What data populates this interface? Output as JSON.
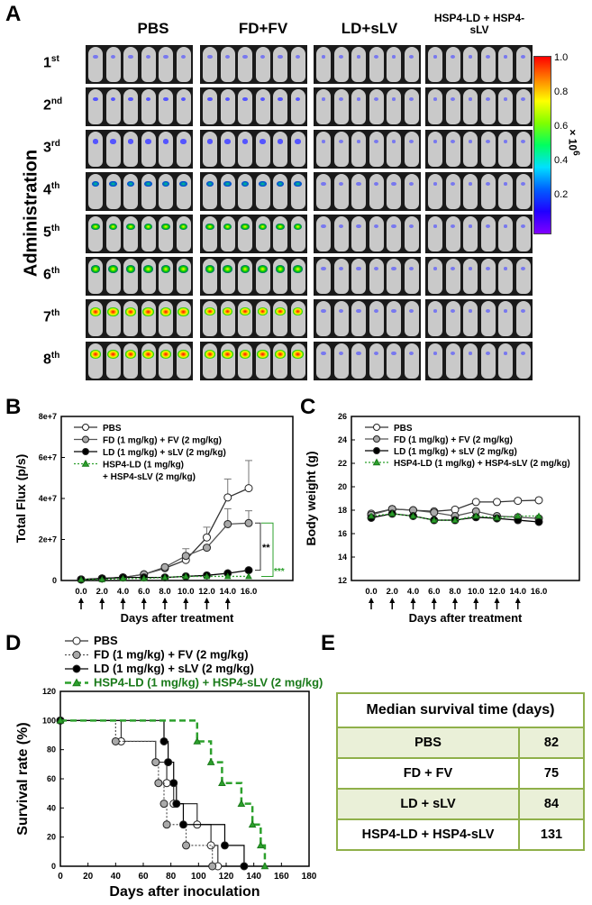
{
  "panel_labels": {
    "a": "A",
    "b": "B",
    "c": "C",
    "d": "D",
    "e": "E"
  },
  "panel_a": {
    "groups": [
      "PBS",
      "FD+FV",
      "LD+sLV",
      "HSP4-LD + HSP4-sLV"
    ],
    "row_axis_label": "Administration",
    "rows": [
      {
        "n": "1",
        "sup": "st"
      },
      {
        "n": "2",
        "sup": "nd"
      },
      {
        "n": "3",
        "sup": "rd"
      },
      {
        "n": "4",
        "sup": "th"
      },
      {
        "n": "5",
        "sup": "th"
      },
      {
        "n": "6",
        "sup": "th"
      },
      {
        "n": "7",
        "sup": "th"
      },
      {
        "n": "8",
        "sup": "th"
      }
    ],
    "signal_level_by_group": [
      [
        0.15,
        0.2,
        0.3,
        0.45,
        0.6,
        0.75,
        0.9,
        0.95
      ],
      [
        0.15,
        0.2,
        0.3,
        0.45,
        0.6,
        0.75,
        0.85,
        0.9
      ],
      [
        0.1,
        0.1,
        0.1,
        0.15,
        0.15,
        0.15,
        0.15,
        0.15
      ],
      [
        0.1,
        0.1,
        0.1,
        0.1,
        0.1,
        0.1,
        0.1,
        0.1
      ]
    ],
    "colorbar": {
      "ticks": [
        "1.0",
        "0.8",
        "0.6",
        "0.4",
        "0.2"
      ],
      "unit": "× 10",
      "unit_exp": "6"
    }
  },
  "chart_data": [
    {
      "type": "line",
      "id": "B",
      "ylabel": "Total Flux (p/s)",
      "xlabel": "Days after treatment",
      "ylim": [
        0,
        80000000
      ],
      "yticks": [
        "0",
        "2e+7",
        "4e+7",
        "6e+7",
        "8e+7"
      ],
      "xticks": [
        "0.0",
        "2.0",
        "4.0",
        "6.0",
        "8.0",
        "10.0",
        "12.0",
        "14.0",
        "16.0"
      ],
      "x": [
        0,
        2,
        4,
        6,
        8,
        10,
        12,
        14,
        16
      ],
      "series": [
        {
          "name": "PBS",
          "values": [
            500000,
            1000000,
            1500000,
            3000000,
            6000000,
            10000000,
            21000000,
            40500000,
            45000000
          ],
          "err": [
            0,
            0,
            0,
            0,
            0,
            0,
            5000000,
            9000000,
            13500000
          ]
        },
        {
          "name": "FD (1 mg/kg) + FV (2 mg/kg)",
          "values": [
            500000,
            1000000,
            1500000,
            3000000,
            6500000,
            12000000,
            16000000,
            27500000,
            28000000
          ],
          "err": [
            0,
            0,
            0,
            0,
            0,
            3500000,
            0,
            7500000,
            6000000
          ]
        },
        {
          "name": "LD (1 mg/kg) + sLV (2 mg/kg)",
          "values": [
            500000,
            1000000,
            1500000,
            1500000,
            1500000,
            2000000,
            2500000,
            3500000,
            5000000
          ],
          "err": [
            0,
            0,
            0,
            0,
            0,
            0,
            0,
            0,
            0
          ]
        },
        {
          "name": "HSP4-LD (1 mg/kg)",
          "name2": "+ HSP4-sLV (2 mg/kg)",
          "values": [
            500000,
            500000,
            1000000,
            1000000,
            1500000,
            2000000,
            2000000,
            2000000,
            2000000
          ],
          "err": [
            0,
            0,
            0,
            0,
            0,
            0,
            0,
            0,
            0
          ]
        }
      ],
      "annotations": [
        "**",
        "***"
      ]
    },
    {
      "type": "line",
      "id": "C",
      "ylabel": "Body weight (g)",
      "xlabel": "Days after treatment",
      "ylim": [
        12,
        26
      ],
      "yticks": [
        "12",
        "14",
        "16",
        "18",
        "20",
        "22",
        "24",
        "26"
      ],
      "xticks": [
        "0.0",
        "2.0",
        "4.0",
        "6.0",
        "8.0",
        "10.0",
        "12.0",
        "14.0",
        "16.0"
      ],
      "x": [
        0,
        2,
        4,
        6,
        8,
        10,
        12,
        14,
        16
      ],
      "series": [
        {
          "name": "PBS",
          "values": [
            17.7,
            18.1,
            18.0,
            17.9,
            18.05,
            18.7,
            18.7,
            18.8,
            18.85
          ]
        },
        {
          "name": "FD (1 mg/kg) + FV (2 mg/kg)",
          "values": [
            17.6,
            18.1,
            18.0,
            17.8,
            17.5,
            17.9,
            17.5,
            17.4,
            17.3
          ]
        },
        {
          "name": "LD (1 mg/kg) + sLV (2 mg/kg)",
          "values": [
            17.35,
            17.7,
            17.5,
            17.15,
            17.15,
            17.4,
            17.3,
            17.15,
            17.0
          ]
        },
        {
          "name": "HSP4-LD (1 mg/kg) + HSP4-sLV (2 mg/kg)",
          "values": [
            17.5,
            17.7,
            17.5,
            17.15,
            17.15,
            17.5,
            17.35,
            17.5,
            17.5
          ]
        }
      ]
    },
    {
      "type": "line",
      "id": "D",
      "ylabel": "Survival rate (%)",
      "xlabel": "Days after inoculation",
      "ylim": [
        0,
        120
      ],
      "xlim": [
        0,
        180
      ],
      "yticks": [
        "0",
        "20",
        "40",
        "60",
        "80",
        "100",
        "120"
      ],
      "xticks": [
        "0",
        "20",
        "40",
        "60",
        "80",
        "100",
        "120",
        "140",
        "160",
        "180"
      ],
      "series": [
        {
          "name": "PBS",
          "x": [
            0,
            44,
            69,
            77,
            82,
            99,
            109,
            114
          ],
          "values": [
            100,
            85.7,
            71.4,
            57.1,
            42.9,
            28.6,
            14.3,
            0
          ]
        },
        {
          "name": "FD (1 mg/kg) + FV (2 mg/kg)",
          "x": [
            0,
            40,
            69,
            71,
            75,
            77,
            91,
            110
          ],
          "values": [
            100,
            85.7,
            71.4,
            57.1,
            42.9,
            28.6,
            14.3,
            0
          ]
        },
        {
          "name": "LD (1 mg/kg) + sLV (2 mg/kg)",
          "x": [
            0,
            75,
            78,
            82,
            84,
            89,
            119,
            133
          ],
          "values": [
            100,
            85.7,
            71.4,
            57.1,
            42.9,
            28.6,
            14.3,
            0
          ]
        },
        {
          "name": "HSP4-LD (1 mg/kg) + HSP4-sLV (2 mg/kg)",
          "x": [
            0,
            99,
            109,
            117,
            131,
            139,
            145,
            148
          ],
          "values": [
            100,
            85.7,
            71.4,
            57.1,
            42.9,
            28.6,
            14.3,
            0
          ]
        }
      ]
    }
  ],
  "table_e": {
    "header": "Median survival time (days)",
    "rows": [
      {
        "group": "PBS",
        "value": "82"
      },
      {
        "group": "FD + FV",
        "value": "75"
      },
      {
        "group": "LD + sLV",
        "value": "84"
      },
      {
        "group": "HSP4-LD + HSP4-sLV",
        "value": "131"
      }
    ]
  },
  "colors": {
    "green": "#2ca02c",
    "table_border": "#8fb04a"
  }
}
